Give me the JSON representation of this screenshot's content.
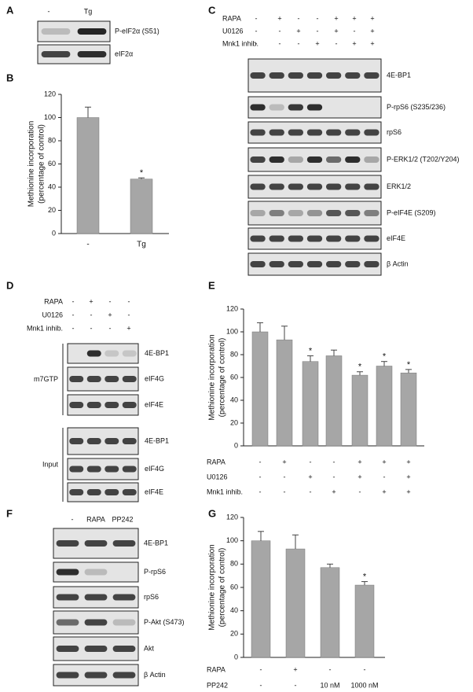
{
  "blots": {
    "A": {
      "panel": "A",
      "columns": [
        "-",
        "Tg"
      ],
      "rows": [
        "P-eIF2α (S51)",
        "eIF2α"
      ]
    },
    "C": {
      "panel": "C",
      "treatments": [
        {
          "name": "RAPA",
          "signs": [
            "-",
            "+",
            "-",
            "-",
            "+",
            "+",
            "+"
          ]
        },
        {
          "name": "U0126",
          "signs": [
            "-",
            "-",
            "+",
            "-",
            "+",
            "-",
            "+"
          ]
        },
        {
          "name": "Mnk1 inhib.",
          "signs": [
            "-",
            "-",
            "-",
            "+",
            "-",
            "+",
            "+"
          ]
        }
      ],
      "rows": [
        "4E-BP1",
        "P-rpS6 (S235/236)",
        "rpS6",
        "P-ERK1/2 (T202/Y204)",
        "ERK1/2",
        "P-eIF4E (S209)",
        "eIF4E",
        "β Actin"
      ]
    },
    "D": {
      "panel": "D",
      "treatments": [
        {
          "name": "RAPA",
          "signs": [
            "-",
            "+",
            "-",
            "-"
          ]
        },
        {
          "name": "U0126",
          "signs": [
            "-",
            "-",
            "+",
            "-"
          ]
        },
        {
          "name": "Mnk1 inhib.",
          "signs": [
            "-",
            "-",
            "-",
            "+"
          ]
        }
      ],
      "groups": [
        {
          "name": "m7GTP",
          "rows": [
            "4E-BP1",
            "eIF4G",
            "eIF4E"
          ]
        },
        {
          "name": "Input",
          "rows": [
            "4E-BP1",
            "eIF4G",
            "eIF4E"
          ]
        }
      ]
    },
    "F": {
      "panel": "F",
      "columns": [
        "-",
        "RAPA",
        "PP242"
      ],
      "rows": [
        "4E-BP1",
        "P-rpS6",
        "rpS6",
        "P-Akt (S473)",
        "Akt",
        "β Actin"
      ]
    }
  },
  "chart_data": [
    {
      "type": "bar",
      "panel": "B",
      "ylabel": [
        "Methionine incorporation",
        "(percentage of control)"
      ],
      "categories": [
        "-",
        "Tg"
      ],
      "values": [
        100,
        47
      ],
      "errors": [
        9,
        1
      ],
      "markers": [
        null,
        "*"
      ],
      "color": "#a6a6a6",
      "ylim": [
        0,
        120
      ],
      "yticks": [
        0,
        20,
        40,
        60,
        80,
        100,
        120
      ]
    },
    {
      "type": "bar",
      "panel": "E",
      "ylabel": [
        "Methionine incorporation",
        "(percentage of control)"
      ],
      "values": [
        100,
        93,
        74,
        79,
        62,
        70,
        64
      ],
      "errors": [
        8,
        12,
        5,
        5,
        3,
        4,
        3
      ],
      "markers": [
        null,
        null,
        "*",
        null,
        "*",
        "*",
        "*"
      ],
      "treatments": [
        {
          "name": "RAPA",
          "signs": [
            "-",
            "+",
            "-",
            "-",
            "+",
            "+",
            "+"
          ]
        },
        {
          "name": "U0126",
          "signs": [
            "-",
            "-",
            "+",
            "-",
            "+",
            "-",
            "+"
          ]
        },
        {
          "name": "Mnk1 inhib.",
          "signs": [
            "-",
            "-",
            "-",
            "+",
            "-",
            "+",
            "+"
          ]
        }
      ],
      "color": "#a6a6a6",
      "ylim": [
        0,
        120
      ],
      "yticks": [
        0,
        20,
        40,
        60,
        80,
        100,
        120
      ]
    },
    {
      "type": "bar",
      "panel": "G",
      "ylabel": [
        "Methionine incorporation",
        "(percentage of control)"
      ],
      "values": [
        100,
        93,
        77,
        62
      ],
      "errors": [
        8,
        12,
        3,
        3
      ],
      "markers": [
        null,
        null,
        null,
        "*"
      ],
      "treatments": [
        {
          "name": "RAPA",
          "signs": [
            "-",
            "+",
            "-",
            "-"
          ]
        },
        {
          "name": "PP242",
          "signs": [
            "-",
            "-",
            "10 nM",
            "1000 nM"
          ]
        }
      ],
      "color": "#a6a6a6",
      "ylim": [
        0,
        120
      ],
      "yticks": [
        0,
        20,
        40,
        60,
        80,
        100,
        120
      ]
    }
  ]
}
